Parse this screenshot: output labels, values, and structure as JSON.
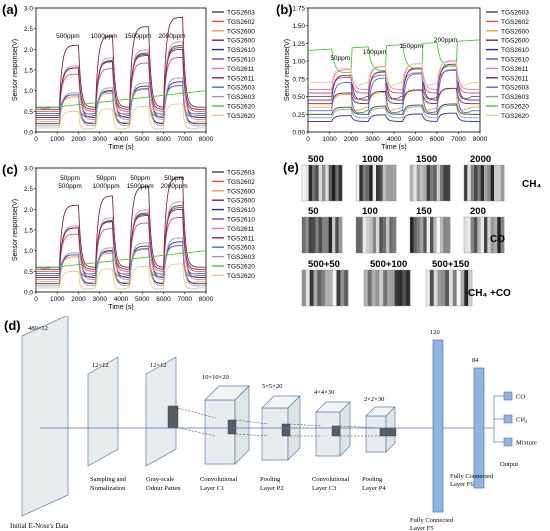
{
  "panels": [
    {
      "id": "a",
      "label": "(a)",
      "ylabel": "Sensor response(V)",
      "xlabel": "Time (s)",
      "xlim": [
        0,
        8000
      ],
      "ylim": [
        0,
        3.0
      ],
      "xticks": [
        "0",
        "1000",
        "2000",
        "3000",
        "4000",
        "5000",
        "6000",
        "7000",
        "8000"
      ],
      "yticks": [
        "0.0",
        "0.5",
        "1.0",
        "1.5",
        "2.0",
        "2.5",
        "3.0"
      ],
      "annotations": [
        "500ppm",
        "1000ppm",
        "1500ppm",
        "2000ppm"
      ]
    },
    {
      "id": "b",
      "label": "(b)",
      "ylabel": "Sensor response(V)",
      "xlabel": "Time (s)",
      "xlim": [
        0,
        8000
      ],
      "ylim": [
        0,
        1.75
      ],
      "xticks": [
        "0",
        "1000",
        "2000",
        "3000",
        "4000",
        "5000",
        "6000",
        "7000",
        "8000"
      ],
      "yticks": [
        "0.00",
        "0.25",
        "0.50",
        "0.75",
        "1.00",
        "1.25",
        "1.50",
        "1.75"
      ],
      "annotations": [
        "50ppm",
        "100ppm",
        "150ppm",
        "200ppm"
      ]
    },
    {
      "id": "c",
      "label": "(c)",
      "ylabel": "Sensor response(V)",
      "xlabel": "Time (s)",
      "xlim": [
        0,
        8000
      ],
      "ylim": [
        0,
        3.0
      ],
      "xticks": [
        "0",
        "1000",
        "2000",
        "3000",
        "4000",
        "5000",
        "6000",
        "7000",
        "8000"
      ],
      "yticks": [
        "0.0",
        "0.5",
        "1.0",
        "1.5",
        "2.0",
        "2.5",
        "3.0"
      ],
      "annotations": [
        "50ppm",
        "500ppm",
        "50ppm",
        "1000ppm",
        "50ppm",
        "1500ppm",
        "50ppm",
        "2000ppm"
      ]
    }
  ],
  "legend": {
    "names": [
      "TGS2603",
      "TGS2602",
      "TGS2600",
      "TGS2600",
      "TGS2610",
      "TGS2610",
      "TGS2611",
      "TGS2611",
      "TGS2603",
      "TGS2603",
      "TGS2620",
      "TGS2620"
    ],
    "colors": [
      "#2f4f2f",
      "#e0505a",
      "#f2a33a",
      "#7a2a4a",
      "#2a2a9a",
      "#7a4a8a",
      "#e87ab0",
      "#7a2a50",
      "#4a6fd0",
      "#9a9aa0",
      "#4ac83a",
      "#f0c890"
    ]
  },
  "panel_e": {
    "label": "(e)",
    "row1": [
      "500",
      "1000",
      "1500",
      "2000"
    ],
    "row1_gas": "CH₄",
    "row2": [
      "50",
      "100",
      "150",
      "200"
    ],
    "row2_gas": "CO",
    "row3": [
      "500+50",
      "500+100",
      "500+150"
    ],
    "row3_gas": "CH₄ +CO"
  },
  "panel_d": {
    "label": "(d)",
    "input_dim": "480×12",
    "input_caption": "Initial E-Nose's Data",
    "stages": [
      {
        "dim": "12×12",
        "caption": [
          "Sampling and",
          "Nomalization"
        ]
      },
      {
        "dim": "12×12",
        "caption": [
          "Gray-scale",
          "Odour Patten"
        ]
      },
      {
        "dim": "10×10×20",
        "caption": [
          "Convolutional",
          "Layer C1"
        ]
      },
      {
        "dim": "5×5×20",
        "caption": [
          "Pooling",
          "Layer P2"
        ]
      },
      {
        "dim": "4×4×30",
        "caption": [
          "Convolutional",
          "Layer C3"
        ]
      },
      {
        "dim": "2×2×30",
        "caption": [
          "Pooling",
          "Layer P4"
        ]
      }
    ],
    "fc5": {
      "dim": "120",
      "caption": [
        "Fully Connected",
        "Layer F5"
      ]
    },
    "fc6": {
      "dim": "84",
      "caption": [
        "Fully Connected",
        "Layer F6"
      ]
    },
    "outputs": [
      "CO",
      "CH₄",
      "Mixture"
    ],
    "output_caption": "Output"
  }
}
